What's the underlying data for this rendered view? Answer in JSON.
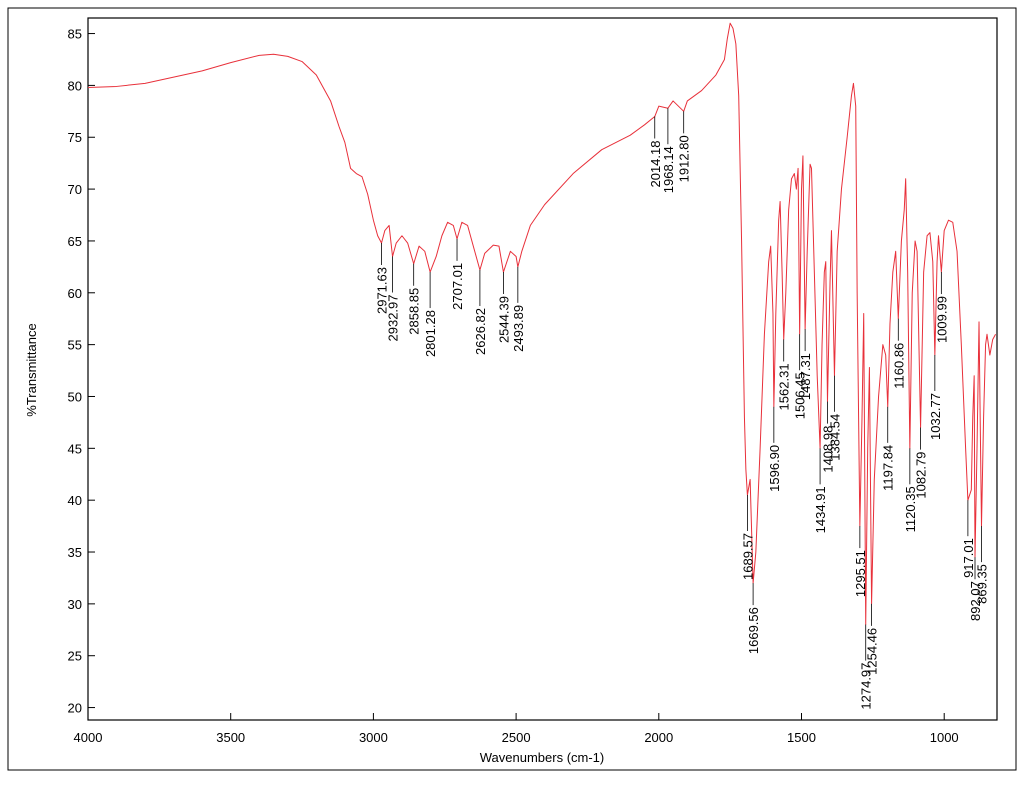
{
  "chart_data": {
    "type": "line",
    "xlabel": "Wavenumbers (cm-1)",
    "ylabel": "%Transmittance",
    "color": "#e8303a",
    "xlim": [
      4000,
      815
    ],
    "xticks": [
      4000,
      3500,
      3000,
      2500,
      2000,
      1500,
      1000
    ],
    "ylim": [
      18.8,
      86.5
    ],
    "yticks": [
      20,
      25,
      30,
      35,
      40,
      45,
      50,
      55,
      60,
      65,
      70,
      75,
      80,
      85
    ],
    "x": [
      4000,
      3900,
      3800,
      3700,
      3600,
      3500,
      3400,
      3350,
      3300,
      3250,
      3200,
      3150,
      3120,
      3100,
      3080,
      3060,
      3040,
      3020,
      3000,
      2985,
      2971.63,
      2960,
      2945,
      2932.97,
      2920,
      2900,
      2880,
      2858.85,
      2840,
      2820,
      2801.28,
      2780,
      2760,
      2740,
      2720,
      2707.01,
      2690,
      2670,
      2650,
      2626.82,
      2610,
      2580,
      2560,
      2544.39,
      2520,
      2500,
      2493.89,
      2480,
      2450,
      2400,
      2300,
      2200,
      2150,
      2100,
      2050,
      2014.18,
      2000,
      1968.14,
      1950,
      1912.8,
      1900,
      1850,
      1800,
      1770,
      1760,
      1750,
      1740,
      1730,
      1720,
      1710,
      1700,
      1695,
      1689.57,
      1680,
      1669.56,
      1660,
      1645,
      1630,
      1615,
      1608,
      1600,
      1596.9,
      1590,
      1580,
      1575,
      1568,
      1562.31,
      1555,
      1545,
      1535,
      1525,
      1518,
      1512,
      1506.45,
      1500,
      1495,
      1487.31,
      1480,
      1470,
      1465,
      1455,
      1445,
      1434.91,
      1428,
      1420,
      1415,
      1408.98,
      1400,
      1395,
      1384.54,
      1375,
      1360,
      1340,
      1325,
      1318,
      1310,
      1305,
      1295.51,
      1288,
      1282,
      1274.97,
      1268,
      1262,
      1254.46,
      1245,
      1230,
      1215,
      1205,
      1197.84,
      1190,
      1180,
      1170,
      1160.86,
      1150,
      1140,
      1135,
      1128,
      1120.35,
      1112,
      1102,
      1095,
      1082.79,
      1072,
      1060,
      1050,
      1040,
      1032.77,
      1025,
      1020,
      1009.99,
      1000,
      985,
      970,
      955,
      940,
      925,
      917.01,
      905,
      900,
      895,
      892.07,
      885,
      878,
      869.35,
      862,
      855,
      850,
      840,
      830,
      820
    ],
    "values": [
      79.8,
      79.9,
      80.2,
      80.8,
      81.4,
      82.2,
      82.9,
      83.0,
      82.8,
      82.3,
      81.0,
      78.5,
      76,
      74.5,
      72,
      71.5,
      71.2,
      69.5,
      67,
      65.5,
      64.8,
      66,
      66.5,
      63.5,
      64.8,
      65.5,
      64.8,
      62.8,
      64.5,
      64,
      62,
      63.5,
      65.5,
      66.8,
      66.5,
      65.2,
      66.8,
      66.5,
      64.5,
      62.2,
      63.8,
      64.6,
      64.5,
      62,
      64,
      63.5,
      62.5,
      64,
      66.5,
      68.5,
      71.5,
      73.8,
      74.5,
      75.2,
      76.2,
      77,
      78,
      77.8,
      78.5,
      77.5,
      78.5,
      79.5,
      81,
      82.5,
      84.5,
      86,
      85.5,
      84,
      79,
      65,
      48,
      43,
      40.5,
      42,
      32,
      35,
      45,
      56,
      63,
      64.5,
      58,
      49,
      58,
      67,
      68.8,
      62,
      55.5,
      60,
      68,
      71,
      71.5,
      70,
      72,
      56,
      70,
      73.2,
      56.5,
      64,
      72.4,
      72,
      62,
      52,
      45,
      55,
      62,
      63,
      49.5,
      61,
      66,
      52,
      64,
      70,
      75,
      79,
      80.2,
      78,
      60,
      37.5,
      48,
      58,
      28,
      45,
      52.8,
      30,
      42,
      50,
      55,
      54,
      49,
      57,
      62,
      64,
      57.5,
      65,
      68,
      71,
      62,
      45,
      60,
      65,
      64,
      47,
      62,
      65.5,
      65.8,
      63,
      54,
      63,
      65.5,
      62,
      66,
      67,
      66.8,
      64,
      55,
      45,
      40,
      41,
      48,
      52,
      34.5,
      45,
      57.2,
      37.5,
      48,
      55,
      56,
      54,
      55.5,
      56
    ],
    "annotations": [
      {
        "label": "2971.63",
        "x": 2971.63,
        "y": 64.8
      },
      {
        "label": "2932.97",
        "x": 2932.97,
        "y": 63.5
      },
      {
        "label": "2858.85",
        "x": 2858.85,
        "y": 62.8
      },
      {
        "label": "2801.28",
        "x": 2801.28,
        "y": 62
      },
      {
        "label": "2707.01",
        "x": 2707.01,
        "y": 65.2
      },
      {
        "label": "2626.82",
        "x": 2626.82,
        "y": 62.2
      },
      {
        "label": "2544.39",
        "x": 2544.39,
        "y": 62
      },
      {
        "label": "2493.89",
        "x": 2493.89,
        "y": 62.5
      },
      {
        "label": "2014.18",
        "x": 2014.18,
        "y": 77
      },
      {
        "label": "1968.14",
        "x": 1968.14,
        "y": 77.8
      },
      {
        "label": "1912.80",
        "x": 1912.8,
        "y": 77.5
      },
      {
        "label": "1689.57",
        "x": 1689.57,
        "y": 40.5
      },
      {
        "label": "1669.56",
        "x": 1669.56,
        "y": 32
      },
      {
        "label": "1596.90",
        "x": 1596.9,
        "y": 49
      },
      {
        "label": "1562.31",
        "x": 1562.31,
        "y": 55.5
      },
      {
        "label": "1506.45",
        "x": 1506.45,
        "y": 56
      },
      {
        "label": "1487.31",
        "x": 1487.31,
        "y": 56.5
      },
      {
        "label": "1434.91",
        "x": 1434.91,
        "y": 45
      },
      {
        "label": "1408.98",
        "x": 1408.98,
        "y": 49.5
      },
      {
        "label": "1384.54",
        "x": 1384.54,
        "y": 52
      },
      {
        "label": "1295.51",
        "x": 1295.51,
        "y": 37.5
      },
      {
        "label": "1274.97",
        "x": 1274.97,
        "y": 28
      },
      {
        "label": "1254.46",
        "x": 1254.46,
        "y": 30
      },
      {
        "label": "1197.84",
        "x": 1197.84,
        "y": 49
      },
      {
        "label": "1160.86",
        "x": 1160.86,
        "y": 57.5
      },
      {
        "label": "1120.35",
        "x": 1120.35,
        "y": 45
      },
      {
        "label": "1082.79",
        "x": 1082.79,
        "y": 47
      },
      {
        "label": "1032.77",
        "x": 1032.77,
        "y": 54
      },
      {
        "label": "1009.99",
        "x": 1009.99,
        "y": 62
      },
      {
        "label": "917.01",
        "x": 917.01,
        "y": 40
      },
      {
        "label": "892.07",
        "x": 892.07,
        "y": 34.5
      },
      {
        "label": "869.35",
        "x": 869.35,
        "y": 37.5
      }
    ]
  }
}
